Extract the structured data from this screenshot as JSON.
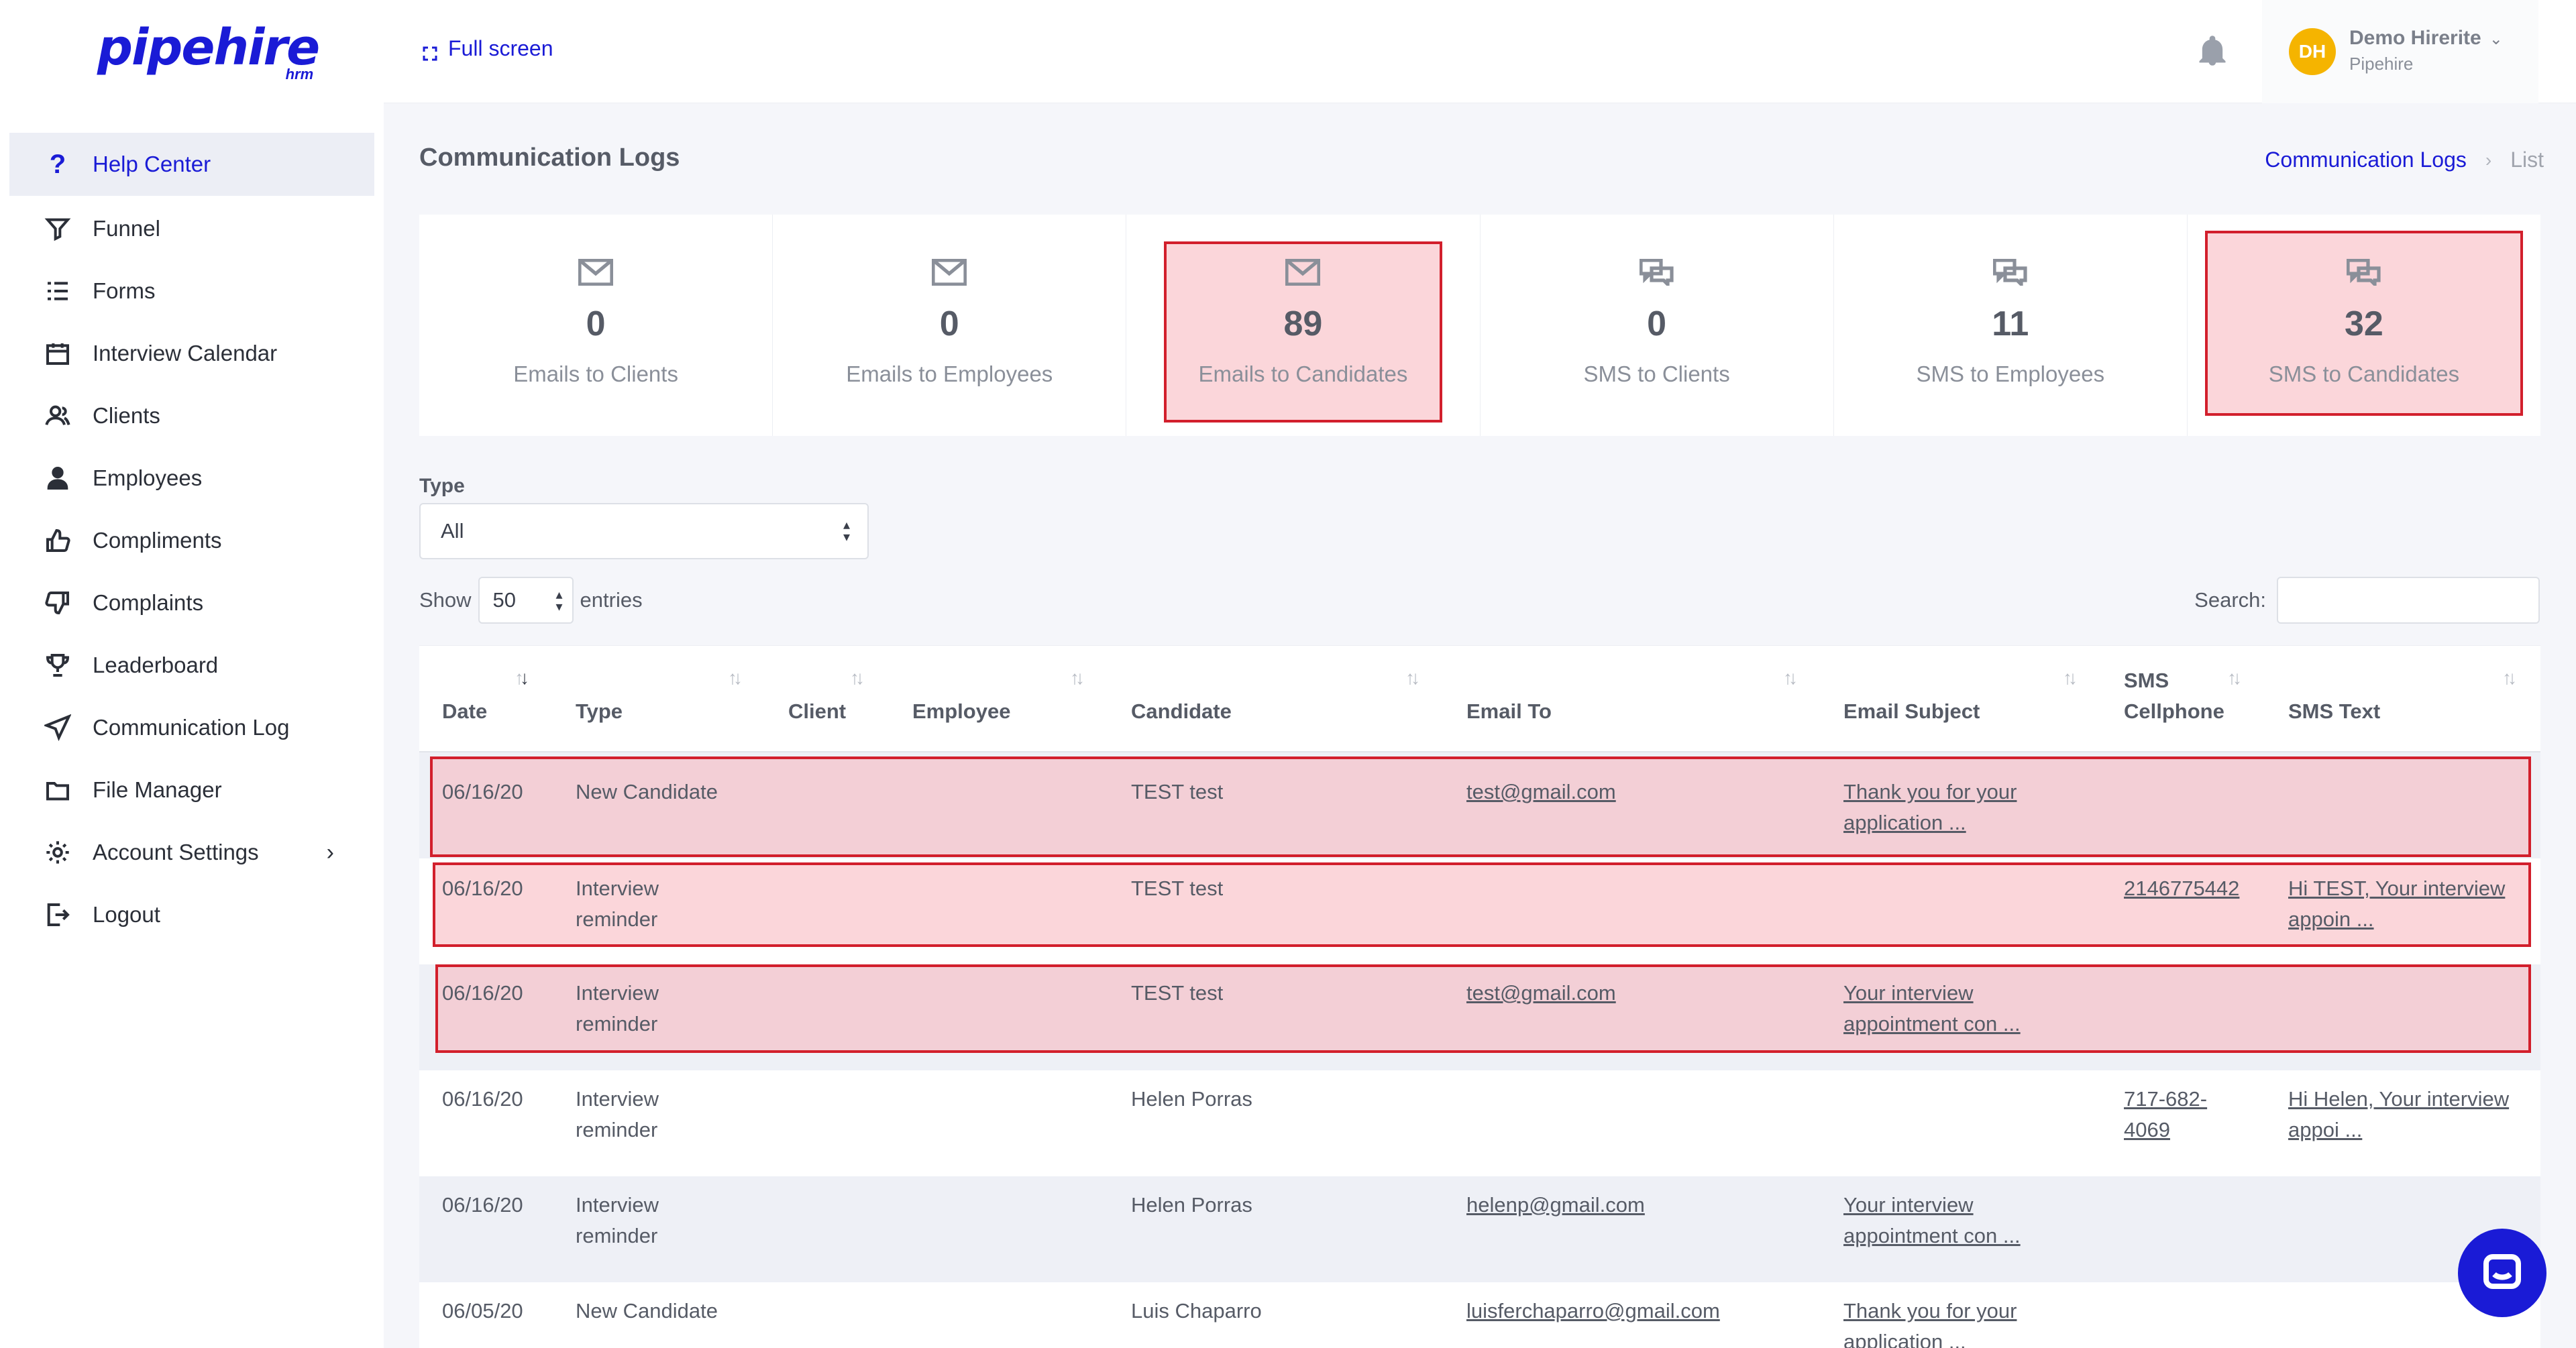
{
  "brand": {
    "logo": "pipehire",
    "logo_sub": "hrm"
  },
  "sidebar": {
    "items": [
      {
        "label": "Help Center",
        "icon": "help-icon",
        "active": true
      },
      {
        "label": "Funnel",
        "icon": "funnel-icon"
      },
      {
        "label": "Forms",
        "icon": "forms-icon"
      },
      {
        "label": "Interview Calendar",
        "icon": "calendar-icon"
      },
      {
        "label": "Clients",
        "icon": "clients-icon"
      },
      {
        "label": "Employees",
        "icon": "employees-icon"
      },
      {
        "label": "Compliments",
        "icon": "thumbs-up-icon"
      },
      {
        "label": "Complaints",
        "icon": "thumbs-down-icon"
      },
      {
        "label": "Leaderboard",
        "icon": "trophy-icon"
      },
      {
        "label": "Communication Log",
        "icon": "send-icon"
      },
      {
        "label": "File Manager",
        "icon": "folder-icon"
      },
      {
        "label": "Account Settings",
        "icon": "gear-icon"
      },
      {
        "label": "Logout",
        "icon": "logout-icon"
      }
    ],
    "help_glyph": "?",
    "settings_chevron": "›"
  },
  "topbar": {
    "fullscreen_label": "Full screen",
    "user": {
      "initials": "DH",
      "name": "Demo Hirerite",
      "org": "Pipehire"
    }
  },
  "page": {
    "title": "Communication Logs",
    "breadcrumb": {
      "link": "Communication Logs",
      "separator": "›",
      "current": "List"
    }
  },
  "stats": [
    {
      "value": "0",
      "label": "Emails to Clients",
      "icon": "envelope-icon"
    },
    {
      "value": "0",
      "label": "Emails to Employees",
      "icon": "envelope-icon"
    },
    {
      "value": "89",
      "label": "Emails to Candidates",
      "icon": "envelope-icon",
      "highlighted": true
    },
    {
      "value": "0",
      "label": "SMS to Clients",
      "icon": "chat-bubbles-icon"
    },
    {
      "value": "11",
      "label": "SMS to Employees",
      "icon": "chat-bubbles-icon"
    },
    {
      "value": "32",
      "label": "SMS to Candidates",
      "icon": "chat-bubbles-icon",
      "highlighted": true
    }
  ],
  "filter": {
    "type_label": "Type",
    "type_value": "All"
  },
  "entries": {
    "show_label": "Show",
    "value": "50",
    "entries_label": "entries"
  },
  "search": {
    "label": "Search:",
    "value": ""
  },
  "table": {
    "columns": [
      "Date",
      "Type",
      "Client",
      "Employee",
      "Candidate",
      "Email To",
      "Email Subject",
      "SMS Cellphone",
      "SMS Text"
    ],
    "rows": [
      {
        "date": "06/16/20",
        "type": "New Candidate",
        "client": "",
        "employee": "",
        "candidate": "TEST test",
        "email_to": "test@gmail.com",
        "email_subject": "Thank you for your application ...",
        "sms_cellphone": "",
        "sms_text": "",
        "highlighted": true
      },
      {
        "date": "06/16/20",
        "type": "Interview reminder",
        "client": "",
        "employee": "",
        "candidate": "TEST test",
        "email_to": "",
        "email_subject": "",
        "sms_cellphone": "2146775442",
        "sms_text": "Hi TEST, Your interview appoin ...",
        "highlighted": true
      },
      {
        "date": "06/16/20",
        "type": "Interview reminder",
        "client": "",
        "employee": "",
        "candidate": "TEST test",
        "email_to": "test@gmail.com",
        "email_subject": "Your interview appointment con ...",
        "sms_cellphone": "",
        "sms_text": "",
        "highlighted": true
      },
      {
        "date": "06/16/20",
        "type": "Interview reminder",
        "client": "",
        "employee": "",
        "candidate": "Helen Porras",
        "email_to": "",
        "email_subject": "",
        "sms_cellphone": "717-682-4069",
        "sms_text": "Hi Helen, Your interview appoi ..."
      },
      {
        "date": "06/16/20",
        "type": "Interview reminder",
        "client": "",
        "employee": "",
        "candidate": "Helen Porras",
        "email_to": "helenp@gmail.com",
        "email_subject": "Your interview appointment con ...",
        "sms_cellphone": "",
        "sms_text": ""
      },
      {
        "date": "06/05/20",
        "type": "New Candidate",
        "client": "",
        "employee": "",
        "candidate": "Luis Chaparro",
        "email_to": "luisferchaparro@gmail.com",
        "email_subject": "Thank you for your application ...",
        "sms_cellphone": "",
        "sms_text": ""
      }
    ]
  },
  "colors": {
    "brand": "#1a1bd6",
    "highlight_border": "#d21f2c",
    "highlight_fill": "#f8b4bc"
  }
}
